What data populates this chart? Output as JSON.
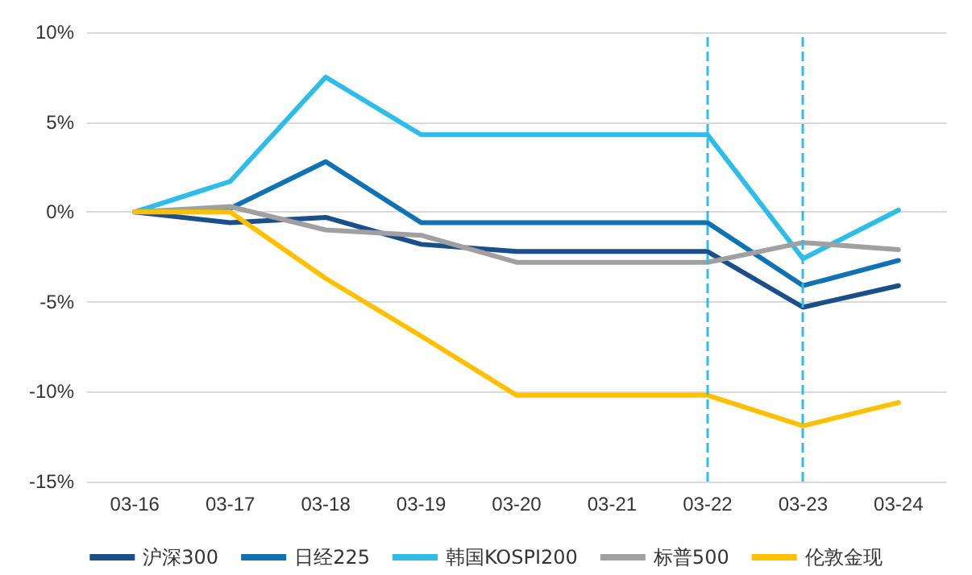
{
  "chart_data": {
    "type": "line",
    "categories": [
      "03-16",
      "03-17",
      "03-18",
      "03-19",
      "03-20",
      "03-21",
      "03-22",
      "03-23",
      "03-24"
    ],
    "series": [
      {
        "name": "沪深300",
        "color": "#1b4f8a",
        "values": [
          0,
          -0.6,
          -0.3,
          -1.8,
          -2.2,
          -2.2,
          -2.2,
          -5.3,
          -4.1
        ]
      },
      {
        "name": "日经225",
        "color": "#0e72b5",
        "values": [
          0,
          0.2,
          2.8,
          -0.6,
          -0.6,
          -0.6,
          -0.6,
          -4.1,
          -2.7
        ]
      },
      {
        "name": "韩国KOSPI200",
        "color": "#2dbde8",
        "values": [
          0,
          1.7,
          7.5,
          4.3,
          4.3,
          4.3,
          4.3,
          -2.6,
          0.1
        ]
      },
      {
        "name": "标普500",
        "color": "#a0a0a0",
        "values": [
          0,
          0.3,
          -1.0,
          -1.3,
          -2.8,
          -2.8,
          -2.8,
          -1.7,
          -2.1
        ]
      },
      {
        "name": "伦敦金现",
        "color": "#ffc000",
        "values": [
          0,
          0,
          -3.7,
          -6.9,
          -10.2,
          -10.2,
          -10.2,
          -11.9,
          -10.6
        ]
      }
    ],
    "ylim": [
      -15,
      10
    ],
    "yticks": [
      {
        "value": -15,
        "label": "-15%"
      },
      {
        "value": -10,
        "label": "-10%"
      },
      {
        "value": -5,
        "label": "-5%"
      },
      {
        "value": 0,
        "label": "0%"
      },
      {
        "value": 5,
        "label": "5%"
      },
      {
        "value": 10,
        "label": "10%"
      }
    ],
    "ref_lines": [
      {
        "axis": "x",
        "value": "03-22",
        "color": "#2dbde8",
        "line_style": "dashed"
      },
      {
        "axis": "x",
        "value": "03-23",
        "color": "#2dbde8",
        "line_style": "dashed"
      }
    ],
    "grid": "y",
    "legend": "bottom",
    "marker": "none",
    "line_style": "solid"
  }
}
